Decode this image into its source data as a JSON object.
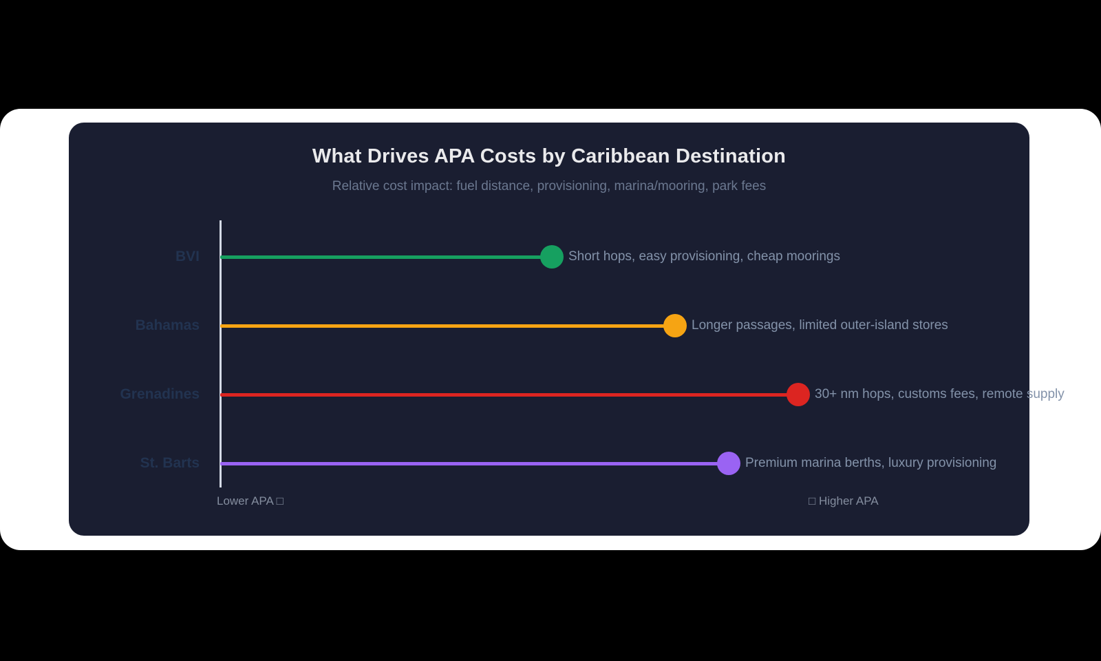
{
  "chart": {
    "title": "What Drives APA Costs by Caribbean Destination",
    "subtitle": "Relative cost impact: fuel distance, provisioning, marina/mooring, park fees",
    "lower_label": "Lower APA □",
    "higher_label": "□ Higher APA",
    "colors": {
      "page_background": "#000000",
      "panel_background": "#ffffff",
      "card_background": "#1a1e31",
      "axis_line": "#d5dae6",
      "title_text": "#eaeaec",
      "subtitle_text": "#6b7890",
      "annotation_text": "#8392a9",
      "category_text": "#223350",
      "caption_text": "#848d9e"
    }
  },
  "chart_data": {
    "type": "bar",
    "subtype": "lollipop",
    "orientation": "horizontal",
    "title": "What Drives APA Costs by Caribbean Destination",
    "subtitle": "Relative cost impact: fuel distance, provisioning, marina/mooring, park fees",
    "categories": [
      "BVI",
      "Bahamas",
      "Grenadines",
      "St. Barts"
    ],
    "xlabel": "",
    "ylabel": "",
    "xlim": [
      0,
      10
    ],
    "x_axis_ticks_shown": false,
    "grid": false,
    "legend": false,
    "axis_caption_left": "Lower APA □",
    "axis_caption_right": "□ Higher APA",
    "series": [
      {
        "label": "BVI",
        "value": 4.3,
        "color": "#16a060",
        "note": "Short hops, easy provisioning, cheap moorings"
      },
      {
        "label": "Bahamas",
        "value": 5.9,
        "color": "#f6a413",
        "note": "Longer passages, limited outer-island stores"
      },
      {
        "label": "Grenadines",
        "value": 7.5,
        "color": "#dc2521",
        "note": "30+ nm hops, customs fees, remote supply"
      },
      {
        "label": "St. Barts",
        "value": 6.6,
        "color": "#9a63f3",
        "note": "Premium marina berths, luxury provisioning"
      }
    ]
  }
}
